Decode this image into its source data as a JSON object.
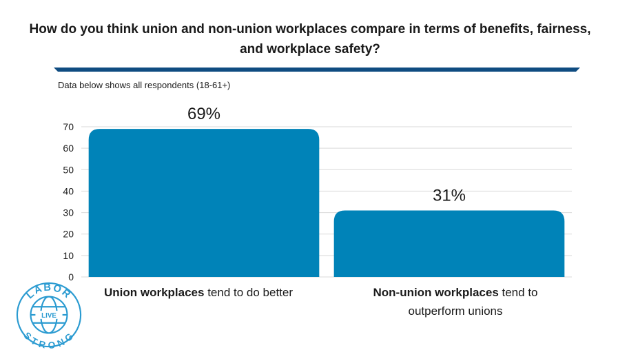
{
  "title": "How do you think union and non-union workplaces compare in terms of benefits, fairness, and workplace safety?",
  "subtitle": "Data below shows all respondents (18-61+)",
  "colors": {
    "bar": "#0083b8",
    "rule": "#0f4c81",
    "grid": "#d9d9d9",
    "logo": "#2b9bd1"
  },
  "categories": [
    {
      "bold": "Union workplaces",
      "rest": " tend to do better"
    },
    {
      "bold": "Non-union workplaces",
      "rest": " tend to outperform unions"
    }
  ],
  "chart_data": {
    "type": "bar",
    "categories": [
      "Union workplaces tend to do better",
      "Non-union workplaces tend to outperform unions"
    ],
    "values": [
      69,
      31
    ],
    "data_labels": [
      "69%",
      "31%"
    ],
    "yticks": [
      0,
      10,
      20,
      30,
      40,
      50,
      60,
      70
    ],
    "ylim": [
      0,
      70
    ],
    "grid": true,
    "legend": "none"
  },
  "logo": {
    "top_text": "LABOR",
    "middle_text": "LIVE",
    "bottom_text": "STRONG",
    "icon": "globe-ring-logo-icon"
  }
}
